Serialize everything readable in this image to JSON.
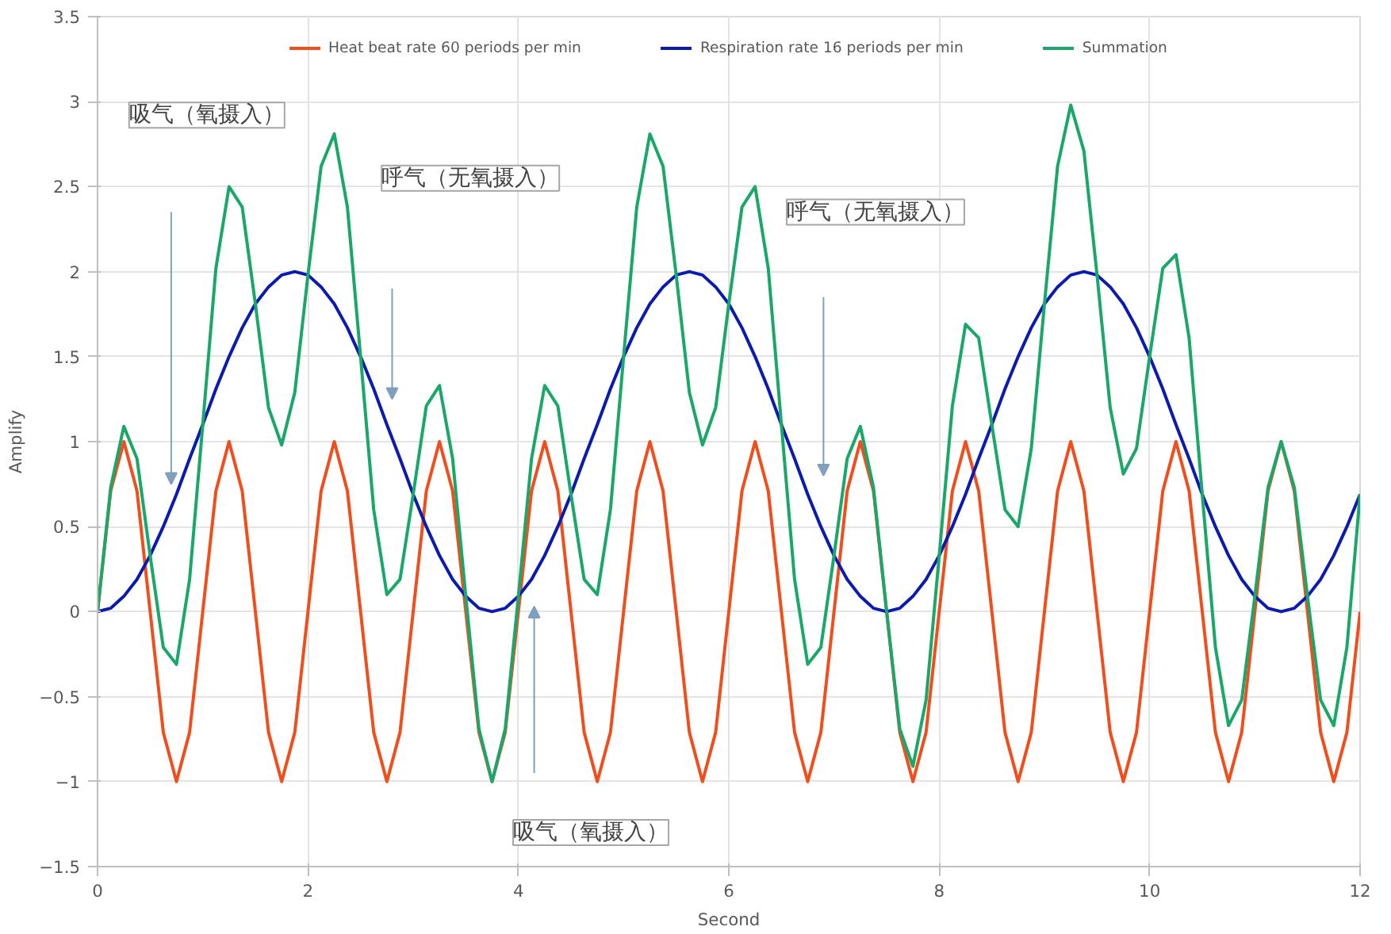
{
  "chart_data": {
    "type": "line",
    "xlabel": "Second",
    "ylabel": "Amplify",
    "x": [
      0,
      0.125,
      0.25,
      0.375,
      0.5,
      0.625,
      0.75,
      0.875,
      1,
      1.125,
      1.25,
      1.375,
      1.5,
      1.625,
      1.75,
      1.875,
      2,
      2.125,
      2.25,
      2.375,
      2.5,
      2.625,
      2.75,
      2.875,
      3,
      3.125,
      3.25,
      3.375,
      3.5,
      3.625,
      3.75,
      3.875,
      4,
      4.125,
      4.25,
      4.375,
      4.5,
      4.625,
      4.75,
      4.875,
      5,
      5.125,
      5.25,
      5.375,
      5.5,
      5.625,
      5.75,
      5.875,
      6,
      6.125,
      6.25,
      6.375,
      6.5,
      6.625,
      6.75,
      6.875,
      7,
      7.125,
      7.25,
      7.375,
      7.5,
      7.625,
      7.75,
      7.875,
      8,
      8.125,
      8.25,
      8.375,
      8.5,
      8.625,
      8.75,
      8.875,
      9,
      9.125,
      9.25,
      9.375,
      9.5,
      9.625,
      9.75,
      9.875,
      10,
      10.125,
      10.25,
      10.375,
      10.5,
      10.625,
      10.75,
      10.875,
      11,
      11.125,
      11.25,
      11.375,
      11.5,
      11.625,
      11.75,
      11.875,
      12
    ],
    "series": [
      {
        "name": "Heat beat rate 60 periods per min",
        "color": "#f04e1c",
        "values": [
          0,
          0.71,
          1,
          0.71,
          0,
          -0.71,
          -1,
          -0.71,
          0,
          0.71,
          1,
          0.71,
          0,
          -0.71,
          -1,
          -0.71,
          0,
          0.71,
          1,
          0.71,
          0,
          -0.71,
          -1,
          -0.71,
          0,
          0.71,
          1,
          0.71,
          0,
          -0.71,
          -1,
          -0.71,
          0,
          0.71,
          1,
          0.71,
          0,
          -0.71,
          -1,
          -0.71,
          0,
          0.71,
          1,
          0.71,
          0,
          -0.71,
          -1,
          -0.71,
          0,
          0.71,
          1,
          0.71,
          0,
          -0.71,
          -1,
          -0.71,
          0,
          0.71,
          1,
          0.71,
          0,
          -0.71,
          -1,
          -0.71,
          0,
          0.71,
          1,
          0.71,
          0,
          -0.71,
          -1,
          -0.71,
          0,
          0.71,
          1,
          0.71,
          0,
          -0.71,
          -1,
          -0.71,
          0,
          0.71,
          1,
          0.71,
          0,
          -0.71,
          -1,
          -0.71,
          0,
          0.71,
          1,
          0.71,
          0,
          -0.71,
          -1,
          -0.71,
          0
        ]
      },
      {
        "name": "Respiration rate 16 periods per min",
        "color": "#0b1bb0",
        "values": [
          0,
          0.02,
          0.09,
          0.19,
          0.33,
          0.5,
          0.69,
          0.9,
          1.1,
          1.31,
          1.5,
          1.67,
          1.81,
          1.91,
          1.98,
          2,
          1.98,
          1.91,
          1.81,
          1.67,
          1.5,
          1.31,
          1.1,
          0.9,
          0.69,
          0.5,
          0.33,
          0.19,
          0.09,
          0.02,
          0,
          0.02,
          0.09,
          0.19,
          0.33,
          0.5,
          0.69,
          0.9,
          1.1,
          1.31,
          1.5,
          1.67,
          1.81,
          1.91,
          1.98,
          2,
          1.98,
          1.91,
          1.81,
          1.67,
          1.5,
          1.31,
          1.1,
          0.9,
          0.69,
          0.5,
          0.33,
          0.19,
          0.09,
          0.02,
          0,
          0.02,
          0.09,
          0.19,
          0.33,
          0.5,
          0.69,
          0.9,
          1.1,
          1.31,
          1.5,
          1.67,
          1.81,
          1.91,
          1.98,
          2,
          1.98,
          1.91,
          1.81,
          1.67,
          1.5,
          1.31,
          1.1,
          0.9,
          0.69,
          0.5,
          0.33,
          0.19,
          0.09,
          0.02,
          0,
          0.02,
          0.09,
          0.19,
          0.33,
          0.5,
          0.69
        ]
      },
      {
        "name": "Summation",
        "color": "#1aa86a",
        "values": [
          0,
          0.73,
          1.09,
          0.9,
          0.33,
          -0.21,
          -0.31,
          0.19,
          1.1,
          2.02,
          2.5,
          2.38,
          1.81,
          1.2,
          0.98,
          1.29,
          1.98,
          2.62,
          2.81,
          2.38,
          1.5,
          0.6,
          0.1,
          0.19,
          0.69,
          1.21,
          1.33,
          0.9,
          0.09,
          -0.69,
          -1,
          -0.69,
          0.09,
          0.9,
          1.33,
          1.21,
          0.69,
          0.19,
          0.1,
          0.6,
          1.5,
          2.38,
          2.81,
          2.62,
          1.98,
          1.29,
          0.98,
          1.2,
          1.81,
          2.38,
          2.5,
          2.02,
          1.1,
          0.19,
          -0.31,
          -0.21,
          0.33,
          0.9,
          1.09,
          0.73,
          0,
          -0.69,
          -0.91,
          -0.52,
          0.33,
          1.21,
          1.69,
          1.61,
          1.1,
          0.6,
          0.5,
          0.96,
          1.81,
          2.62,
          2.98,
          2.71,
          1.98,
          1.2,
          0.81,
          0.96,
          1.5,
          2.02,
          2.1,
          1.61,
          0.69,
          -0.21,
          -0.67,
          -0.52,
          0.09,
          0.73,
          1,
          0.73,
          0.09,
          -0.52,
          -0.67,
          -0.21,
          0.69
        ]
      }
    ],
    "xlim": [
      0,
      12
    ],
    "xticks": [
      0,
      2,
      4,
      6,
      8,
      10,
      12
    ],
    "ylim": [
      -1.5,
      3.5
    ],
    "yticks": [
      -1.5,
      -1,
      -0.5,
      0,
      0.5,
      1,
      1.5,
      2,
      2.5,
      3,
      3.5
    ],
    "grid": true,
    "legend": "top",
    "marker": "none",
    "line_style": "solid",
    "annotations": [
      "吸气（氧摄入）",
      "呼气（无氧摄入）",
      "呼气（无氧摄入）",
      "吸气（氧摄入）"
    ]
  }
}
